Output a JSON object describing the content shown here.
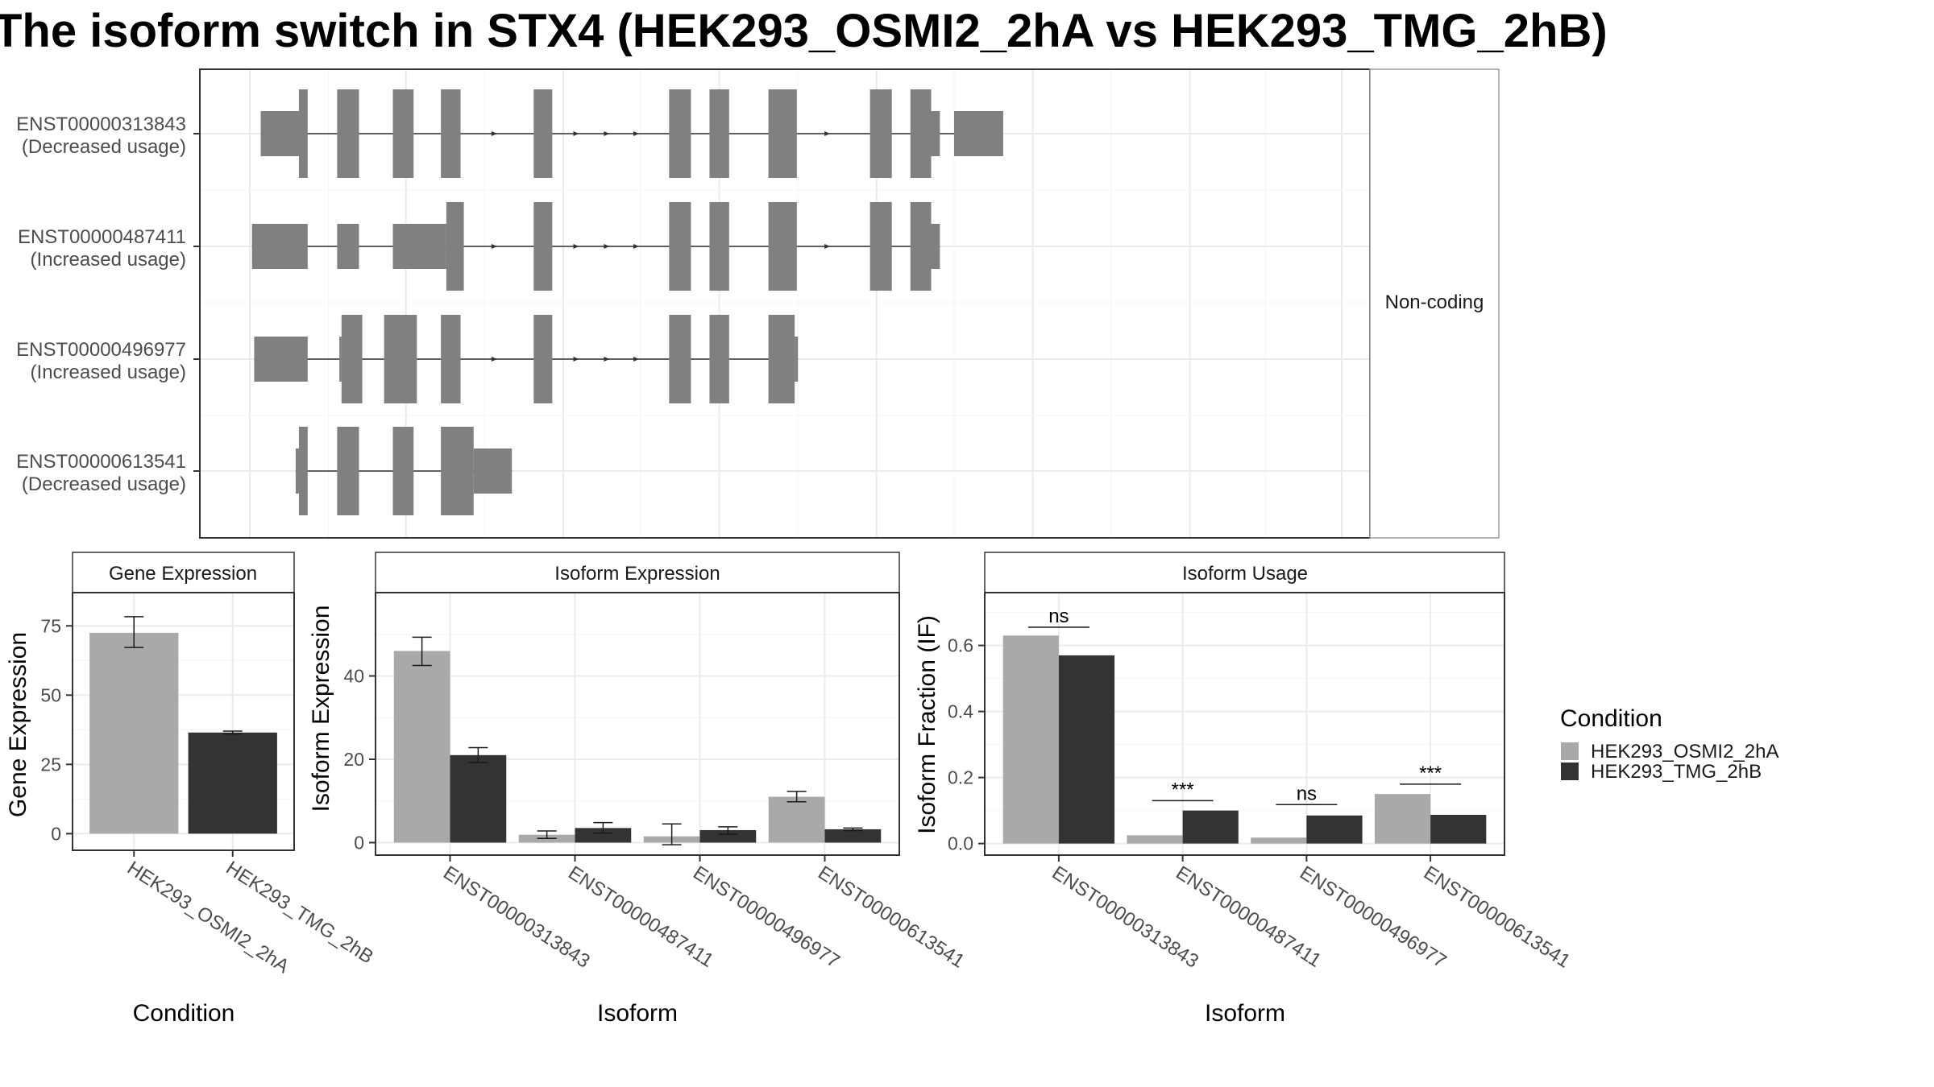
{
  "title": "The isoform switch in STX4 (HEK293_OSMI2_2hA vs HEK293_TMG_2hB)",
  "colors": {
    "cond_a": "#a9a9a9",
    "cond_b": "#333333",
    "exon": "#808080",
    "grid": "#ebebeb",
    "panel_border": "#333333",
    "strip_border": "#9e9e9e"
  },
  "chart_data": [
    {
      "type": "gene-structure",
      "facet_label": "Non-coding",
      "xlim": [
        0,
        1000
      ],
      "transcripts": [
        {
          "id": "ENST00000313843",
          "usage": "(Decreased usage)",
          "exons": [
            [
              10,
              45,
              "s"
            ],
            [
              45,
              53,
              "l"
            ],
            [
              80,
              100,
              "l"
            ],
            [
              131,
              150,
              "l"
            ],
            [
              175,
              193,
              "l"
            ],
            [
              260,
              277,
              "l"
            ],
            [
              384,
              404,
              "l"
            ],
            [
              421,
              439,
              "l"
            ],
            [
              475,
              501,
              "l"
            ],
            [
              568,
              588,
              "l"
            ],
            [
              605,
              624,
              "l"
            ],
            [
              624,
              632,
              "s"
            ],
            [
              645,
              690,
              "s"
            ]
          ],
          "arrows": [
            225,
            300,
            328,
            355,
            530
          ]
        },
        {
          "id": "ENST00000487411",
          "usage": "(Increased usage)",
          "exons": [
            [
              2,
              53,
              "s"
            ],
            [
              80,
              100,
              "s"
            ],
            [
              131,
              180,
              "s"
            ],
            [
              180,
              196,
              "l"
            ],
            [
              260,
              277,
              "l"
            ],
            [
              384,
              404,
              "l"
            ],
            [
              421,
              439,
              "l"
            ],
            [
              475,
              501,
              "l"
            ],
            [
              568,
              588,
              "l"
            ],
            [
              605,
              624,
              "l"
            ],
            [
              624,
              632,
              "s"
            ]
          ],
          "arrows": [
            225,
            300,
            328,
            355,
            530
          ]
        },
        {
          "id": "ENST00000496977",
          "usage": "(Increased usage)",
          "exons": [
            [
              4,
              53,
              "s"
            ],
            [
              82,
              84,
              "s"
            ],
            [
              84,
              103,
              "l"
            ],
            [
              123,
              153,
              "l"
            ],
            [
              175,
              193,
              "l"
            ],
            [
              260,
              277,
              "l"
            ],
            [
              384,
              404,
              "l"
            ],
            [
              421,
              439,
              "l"
            ],
            [
              475,
              499,
              "l"
            ],
            [
              499,
              502,
              "s"
            ]
          ],
          "arrows": [
            225,
            300,
            328,
            355
          ]
        },
        {
          "id": "ENST00000613541",
          "usage": "(Decreased usage)",
          "exons": [
            [
              42,
              45,
              "s"
            ],
            [
              45,
              53,
              "l"
            ],
            [
              80,
              100,
              "l"
            ],
            [
              131,
              150,
              "l"
            ],
            [
              175,
              205,
              "l"
            ],
            [
              205,
              240,
              "s"
            ]
          ],
          "arrows": []
        }
      ]
    },
    {
      "type": "bar",
      "strip_label": "Gene Expression",
      "xlabel": "Condition",
      "ylabel": "Gene Expression",
      "ylim": [
        -6,
        87
      ],
      "yticks": [
        0,
        25,
        50,
        75
      ],
      "categories": [
        "HEK293_OSMI2_2hA",
        "HEK293_TMG_2hB"
      ],
      "values": [
        72.5,
        36.5
      ],
      "errors": [
        [
          67.2,
          78.3
        ],
        [
          36.0,
          37.0
        ]
      ]
    },
    {
      "type": "bar",
      "strip_label": "Isoform Expression",
      "xlabel": "Isoform",
      "ylabel": "Isoform Expression",
      "ylim": [
        -3,
        60
      ],
      "yticks": [
        0,
        20,
        40
      ],
      "categories": [
        "ENST00000313843",
        "ENST00000487411",
        "ENST00000496977",
        "ENST00000613541"
      ],
      "series": [
        {
          "name": "HEK293_OSMI2_2hA",
          "values": [
            46.0,
            1.9,
            1.5,
            11.0
          ],
          "errors": [
            [
              42.5,
              49.3
            ],
            [
              1.0,
              2.8
            ],
            [
              -0.5,
              4.5
            ],
            [
              9.8,
              12.3
            ]
          ]
        },
        {
          "name": "HEK293_TMG_2hB",
          "values": [
            21.0,
            3.5,
            3.0,
            3.2
          ],
          "errors": [
            [
              19.2,
              22.8
            ],
            [
              2.3,
              4.8
            ],
            [
              2.0,
              3.8
            ],
            [
              2.9,
              3.5
            ]
          ]
        }
      ]
    },
    {
      "type": "bar",
      "strip_label": "Isoform Usage",
      "xlabel": "Isoform",
      "ylabel": "Isoform Fraction (IF)",
      "ylim": [
        -0.035,
        0.76
      ],
      "yticks": [
        "0.0",
        "0.2",
        "0.4",
        "0.6"
      ],
      "categories": [
        "ENST00000313843",
        "ENST00000487411",
        "ENST00000496977",
        "ENST00000613541"
      ],
      "series": [
        {
          "name": "HEK293_OSMI2_2hA",
          "values": [
            0.63,
            0.025,
            0.018,
            0.15
          ]
        },
        {
          "name": "HEK293_TMG_2hB",
          "values": [
            0.57,
            0.1,
            0.085,
            0.087
          ]
        }
      ],
      "significance": [
        {
          "label": "ns",
          "y": 0.655
        },
        {
          "label": "***",
          "y": 0.13
        },
        {
          "label": "ns",
          "y": 0.118
        },
        {
          "label": "***",
          "y": 0.18
        }
      ]
    }
  ],
  "legend": {
    "title": "Condition",
    "items": [
      "HEK293_OSMI2_2hA",
      "HEK293_TMG_2hB"
    ]
  }
}
